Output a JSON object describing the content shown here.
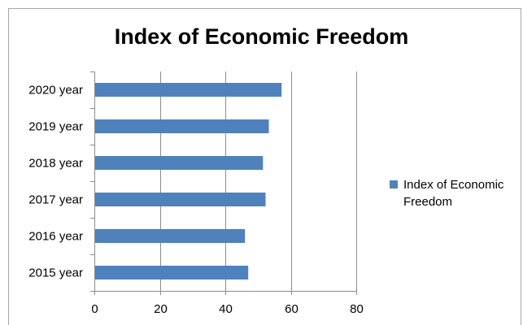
{
  "chart_data": {
    "type": "bar",
    "orientation": "horizontal",
    "title": "Index of Economic Freedom",
    "categories": [
      "2020 year",
      "2019 year",
      "2018 year",
      "2017 year",
      "2016 year",
      "2015 year"
    ],
    "series": [
      {
        "name": "Index of Economic Freedom",
        "values": [
          57.2,
          53.3,
          51.5,
          52.3,
          46.0,
          47.0
        ],
        "color": "#4f81bd"
      }
    ],
    "xlim": [
      0,
      80
    ],
    "xticks": [
      "0",
      "20",
      "40",
      "60",
      "80"
    ],
    "xlabel": "",
    "ylabel": "",
    "grid": "vertical",
    "legend": "right"
  }
}
